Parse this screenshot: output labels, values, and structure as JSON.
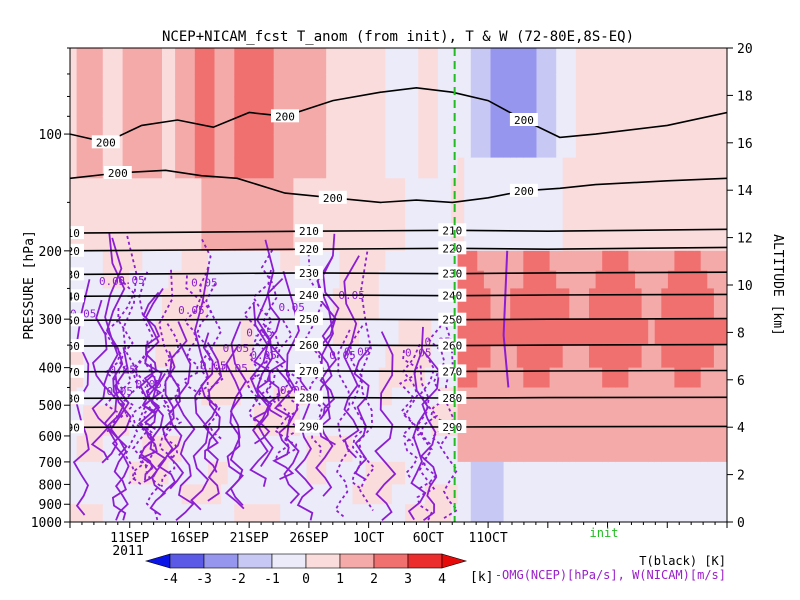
{
  "chart_data": {
    "type": "heatmap",
    "title": "NCEP+NICAM_fcst T_anom (from init), T & W  (72-80E,8S-EQ)",
    "ylabel_left": "PRESSURE [hPa]",
    "ylabel_right": "ALTITUDE [km]",
    "pressure_ticks": [
      100,
      200,
      300,
      400,
      500,
      600,
      700,
      800,
      900,
      1000
    ],
    "pressure_tick_labels": [
      "100",
      "200",
      "300",
      "400",
      "500",
      "600",
      "700",
      "800",
      "900",
      "1000"
    ],
    "altitude_ticks": [
      0,
      2,
      4,
      6,
      8,
      10,
      12,
      14,
      16,
      18,
      20
    ],
    "altitude_tick_labels": [
      "0",
      "2",
      "4",
      "6",
      "8",
      "10",
      "12",
      "14",
      "16",
      "18",
      "20"
    ],
    "x_range_days": [
      0,
      55
    ],
    "x_ticks": [
      {
        "day": 5,
        "label": "11SEP"
      },
      {
        "day": 10,
        "label": "16SEP"
      },
      {
        "day": 15,
        "label": "21SEP"
      },
      {
        "day": 20,
        "label": "26SEP"
      },
      {
        "day": 25,
        "label": "1OCT"
      },
      {
        "day": 30,
        "label": "6OCT"
      },
      {
        "day": 35,
        "label": "11OCT"
      }
    ],
    "year_label": "2011",
    "init_day": 32.2,
    "init_label": "init",
    "color_scale": {
      "label": "[k]",
      "levels": [
        -4,
        -3,
        -2,
        -1,
        0,
        1,
        2,
        3,
        4
      ],
      "level_labels": [
        "-4",
        "-3",
        "-2",
        "-1",
        "0",
        "1",
        "2",
        "3",
        "4"
      ],
      "colors": [
        "#0a14e6",
        "#5a5ae6",
        "#9696ee",
        "#c8c8f4",
        "#ebebfa",
        "#fadcdc",
        "#f5aaaa",
        "#f07070",
        "#eb2d2d",
        "#e60a0a"
      ]
    },
    "temperature_contours": [
      {
        "level": 200,
        "label": "200",
        "points": [
          [
            0,
            100
          ],
          [
            3,
            105
          ],
          [
            6,
            95
          ],
          [
            9,
            92
          ],
          [
            12,
            96
          ],
          [
            15,
            88
          ],
          [
            18,
            90
          ],
          [
            22,
            82
          ],
          [
            26,
            78
          ],
          [
            29,
            76
          ],
          [
            32,
            78
          ],
          [
            35,
            82
          ],
          [
            38,
            92
          ],
          [
            41,
            102
          ],
          [
            44,
            100
          ],
          [
            50,
            95
          ],
          [
            55,
            88
          ]
        ]
      },
      {
        "level": 200,
        "label": "200",
        "points": [
          [
            0,
            130
          ],
          [
            4,
            126
          ],
          [
            8,
            124
          ],
          [
            11,
            128
          ],
          [
            14,
            130
          ],
          [
            18,
            142
          ],
          [
            22,
            146
          ],
          [
            26,
            150
          ],
          [
            29,
            148
          ],
          [
            32,
            150
          ],
          [
            35,
            146
          ],
          [
            38,
            140
          ],
          [
            41,
            138
          ],
          [
            44,
            135
          ],
          [
            50,
            132
          ],
          [
            55,
            130
          ]
        ]
      },
      {
        "level": 210,
        "label": "210",
        "points": [
          [
            0,
            180
          ],
          [
            10,
            179
          ],
          [
            20,
            178
          ],
          [
            32,
            177
          ],
          [
            40,
            178
          ],
          [
            55,
            176
          ]
        ]
      },
      {
        "level": 220,
        "label": "220",
        "points": [
          [
            0,
            200
          ],
          [
            10,
            199
          ],
          [
            20,
            198
          ],
          [
            32,
            197
          ],
          [
            40,
            198
          ],
          [
            55,
            196
          ]
        ]
      },
      {
        "level": 230,
        "label": "230",
        "points": [
          [
            0,
            230
          ],
          [
            10,
            229
          ],
          [
            20,
            228
          ],
          [
            32,
            229
          ],
          [
            40,
            228
          ],
          [
            55,
            227
          ]
        ]
      },
      {
        "level": 240,
        "label": "240",
        "points": [
          [
            0,
            262
          ],
          [
            10,
            261
          ],
          [
            20,
            260
          ],
          [
            32,
            261
          ],
          [
            40,
            260
          ],
          [
            55,
            259
          ]
        ]
      },
      {
        "level": 250,
        "label": "250",
        "points": [
          [
            0,
            302
          ],
          [
            10,
            301
          ],
          [
            20,
            300
          ],
          [
            32,
            301
          ],
          [
            40,
            300
          ],
          [
            55,
            299
          ]
        ]
      },
      {
        "level": 260,
        "label": "260",
        "points": [
          [
            0,
            352
          ],
          [
            10,
            351
          ],
          [
            20,
            350
          ],
          [
            32,
            351
          ],
          [
            40,
            350
          ],
          [
            55,
            349
          ]
        ]
      },
      {
        "level": 270,
        "label": "270",
        "points": [
          [
            0,
            410
          ],
          [
            10,
            409
          ],
          [
            20,
            408
          ],
          [
            32,
            409
          ],
          [
            40,
            408
          ],
          [
            55,
            407
          ]
        ]
      },
      {
        "level": 280,
        "label": "280",
        "points": [
          [
            0,
            480
          ],
          [
            10,
            479
          ],
          [
            20,
            478
          ],
          [
            32,
            479
          ],
          [
            40,
            478
          ],
          [
            55,
            477
          ]
        ]
      },
      {
        "level": 290,
        "label": "290",
        "points": [
          [
            0,
            570
          ],
          [
            10,
            569
          ],
          [
            20,
            568
          ],
          [
            32,
            569
          ],
          [
            40,
            568
          ],
          [
            55,
            567
          ]
        ]
      }
    ],
    "omega_label_value": "0.05",
    "legend_line1": "T(black) [K]",
    "legend_line2": "-OMG(NCEP)[hPa/s], W(NICAM)[m/s]"
  }
}
